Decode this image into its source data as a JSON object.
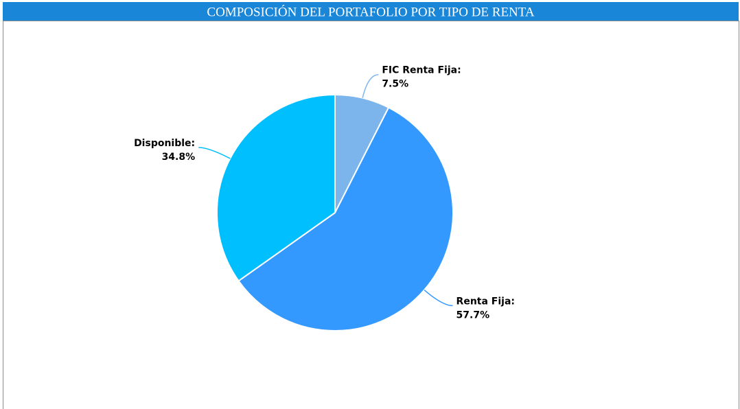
{
  "chart_data": {
    "type": "pie",
    "title": "COMPOSICIÓN DEL PORTAFOLIO POR TIPO DE RENTA",
    "categories": [
      "FIC Renta Fija:",
      "Renta Fija:",
      "Disponible:"
    ],
    "values": [
      7.5,
      57.7,
      34.8
    ],
    "value_labels": [
      "7.5%",
      "57.7%",
      "34.8%"
    ],
    "colors": [
      "#7cb5ec",
      "#3399ff",
      "#00bfff"
    ]
  }
}
